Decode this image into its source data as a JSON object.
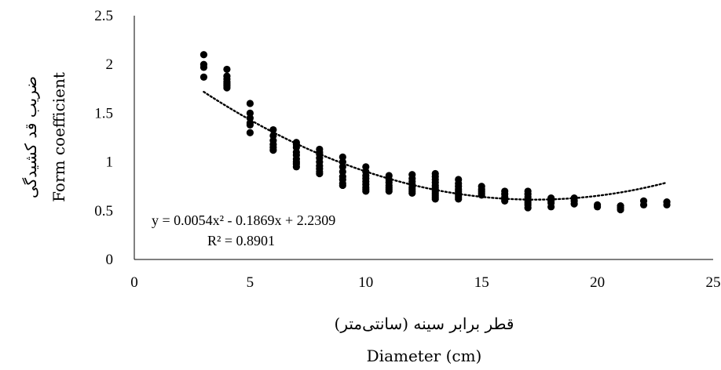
{
  "chart_data": {
    "type": "scatter",
    "title": "",
    "xlabel_fa": "قطر برابر سینه (سانتی‌متر)",
    "xlabel_en": "Diameter (cm)",
    "ylabel_fa": "ضریب قد کشیدگی",
    "ylabel_en": "Form coefficient",
    "xlim": [
      0,
      25
    ],
    "ylim": [
      0,
      2.5
    ],
    "x_ticks": [
      "0",
      "5",
      "10",
      "15",
      "20",
      "25"
    ],
    "y_ticks": [
      "0",
      "0.5",
      "1",
      "1.5",
      "2",
      "2.5"
    ],
    "grid": false,
    "marker_color": "#000000",
    "trendline": {
      "type": "polynomial",
      "order": 2,
      "coefficients": [
        0.0054,
        -0.1869,
        2.2309
      ],
      "x_range": [
        3,
        23
      ],
      "style": "dotted",
      "equation_label": "y = 0.0054x² - 0.1869x + 2.2309",
      "r2_label": "R² = 0.8901"
    },
    "series": [
      {
        "x": [
          3,
          3,
          3,
          3,
          4,
          4,
          4,
          4,
          4,
          4,
          4,
          5,
          5,
          5,
          5,
          5,
          5,
          6,
          6,
          6,
          6,
          6,
          6,
          7,
          7,
          7,
          7,
          7,
          7,
          7,
          7,
          7,
          8,
          8,
          8,
          8,
          8,
          8,
          8,
          8,
          8,
          9,
          9,
          9,
          9,
          9,
          9,
          9,
          9,
          10,
          10,
          10,
          10,
          10,
          10,
          10,
          10,
          10,
          11,
          11,
          11,
          11,
          11,
          11,
          11,
          12,
          12,
          12,
          12,
          12,
          12,
          12,
          12,
          13,
          13,
          13,
          13,
          13,
          13,
          13,
          13,
          13,
          13,
          13,
          13,
          14,
          14,
          14,
          14,
          14,
          14,
          14,
          14,
          14,
          15,
          15,
          15,
          15,
          15,
          16,
          16,
          16,
          16,
          16,
          17,
          17,
          17,
          17,
          17,
          17,
          17,
          17,
          18,
          18,
          18,
          18,
          19,
          19,
          19,
          20,
          20,
          21,
          21,
          21,
          22,
          22,
          23,
          23
        ],
        "y": [
          2.1,
          2.0,
          1.97,
          1.87,
          1.95,
          1.88,
          1.85,
          1.82,
          1.8,
          1.78,
          1.76,
          1.6,
          1.5,
          1.45,
          1.4,
          1.38,
          1.3,
          1.33,
          1.27,
          1.22,
          1.18,
          1.15,
          1.12,
          1.2,
          1.15,
          1.1,
          1.07,
          1.03,
          1.0,
          0.98,
          0.95,
          1.18,
          1.13,
          1.08,
          1.04,
          1.0,
          0.96,
          0.93,
          0.9,
          0.88,
          1.1,
          1.05,
          1.0,
          0.95,
          0.9,
          0.85,
          0.82,
          0.78,
          0.76,
          0.95,
          0.9,
          0.86,
          0.83,
          0.8,
          0.77,
          0.74,
          0.72,
          0.7,
          0.86,
          0.82,
          0.79,
          0.76,
          0.74,
          0.72,
          0.7,
          0.87,
          0.83,
          0.8,
          0.77,
          0.74,
          0.72,
          0.7,
          0.68,
          0.88,
          0.85,
          0.82,
          0.79,
          0.76,
          0.74,
          0.72,
          0.7,
          0.68,
          0.66,
          0.64,
          0.62,
          0.82,
          0.78,
          0.75,
          0.72,
          0.7,
          0.68,
          0.66,
          0.64,
          0.62,
          0.75,
          0.72,
          0.7,
          0.68,
          0.66,
          0.7,
          0.67,
          0.64,
          0.62,
          0.6,
          0.7,
          0.67,
          0.64,
          0.62,
          0.6,
          0.58,
          0.56,
          0.53,
          0.63,
          0.6,
          0.58,
          0.54,
          0.63,
          0.6,
          0.57,
          0.56,
          0.54,
          0.55,
          0.53,
          0.51,
          0.6,
          0.56,
          0.59,
          0.56
        ]
      }
    ]
  }
}
